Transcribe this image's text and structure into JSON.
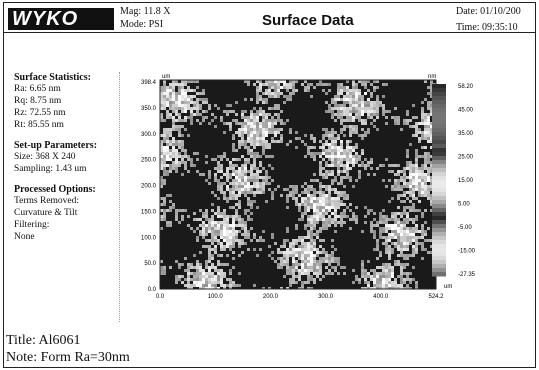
{
  "header": {
    "logo_text": "WYKO",
    "mag": "Mag:  11.8 X",
    "mode": "Mode:  PSI",
    "title": "Surface Data",
    "date": "Date:  01/10/200",
    "time": "Time:  09:35:10"
  },
  "panel": {
    "stats_heading": "Surface Statistics:",
    "stats": [
      "Ra:  6.65 nm",
      "Rq:  8.75 nm",
      "Rz:  72.55 nm",
      "Rt:  85.55 nm"
    ],
    "setup_heading": "Set-up Parameters:",
    "setup": [
      "Size:  368 X 240",
      "Sampling:  1.43 um"
    ],
    "proc_heading": "Processed Options:",
    "proc": [
      "Terms Removed:",
      "Curvature & Tilt",
      "Filtering:",
      "None"
    ]
  },
  "plot": {
    "x_unit": "um",
    "y_unit": "um",
    "z_unit": "nm",
    "y_ticks": [
      "398.4",
      "350.0",
      "300.0",
      "250.0",
      "200.0",
      "150.0",
      "100.0",
      "50.0",
      "0.0"
    ],
    "x_ticks": [
      "0.0",
      "100.0",
      "200.0",
      "300.0",
      "400.0",
      "524.2"
    ],
    "scale_ticks": [
      "58.20",
      "45.00",
      "35.00",
      "25.00",
      "15.00",
      "5.00",
      "-5.00",
      "-15.00",
      "-27.35"
    ]
  },
  "footer": {
    "title": "Title:  Al6061",
    "note": "Note:  Form Ra=30nm"
  }
}
